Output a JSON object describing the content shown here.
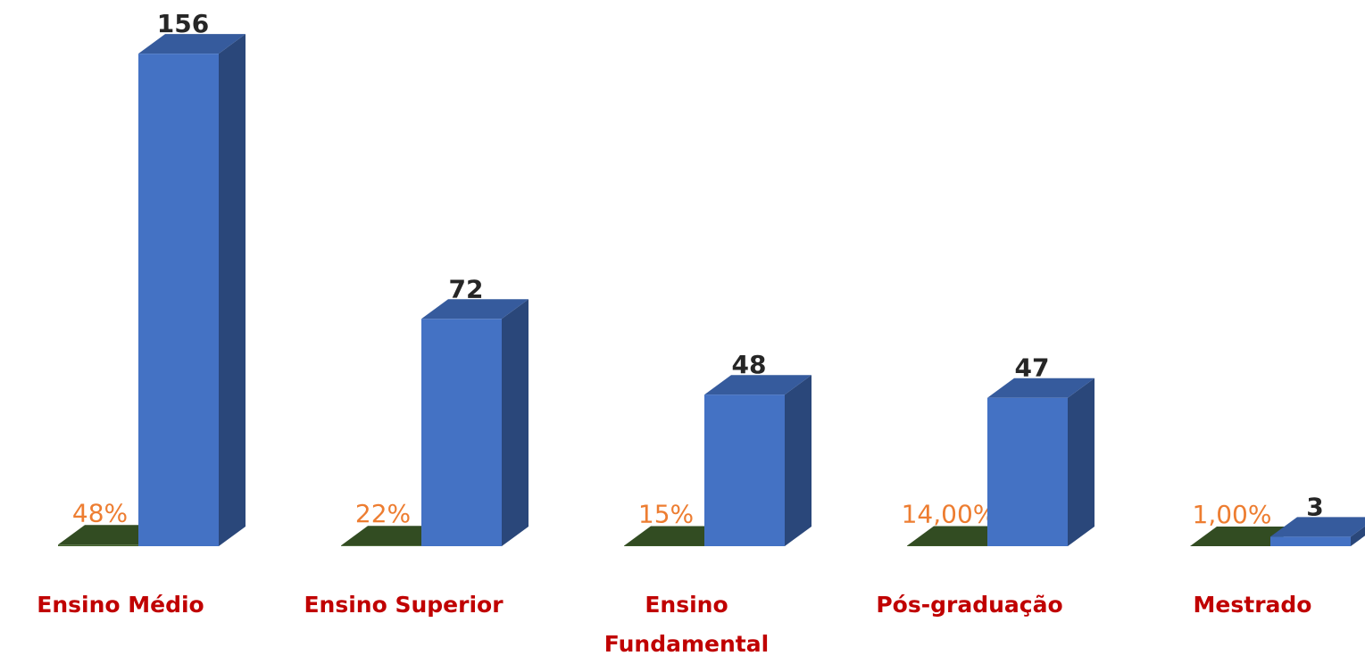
{
  "chart_data": {
    "type": "bar3d",
    "categories": [
      "Ensino Médio",
      "Ensino Superior",
      "Ensino Fundamental",
      "Pós-graduação",
      "Mestrado"
    ],
    "series": [
      {
        "color": "#3f5f2a",
        "values": [
          0.48,
          0.22,
          0.15,
          0.14,
          0.01
        ],
        "value_labels": [
          "48%",
          "22%",
          "15%",
          "14,00%",
          "1,00%"
        ],
        "label_color": "#ed7d31"
      },
      {
        "color": "#4472c4",
        "values": [
          156,
          72,
          48,
          47,
          3
        ],
        "label_color": "#262626"
      }
    ],
    "ylim": [
      0,
      160
    ]
  }
}
